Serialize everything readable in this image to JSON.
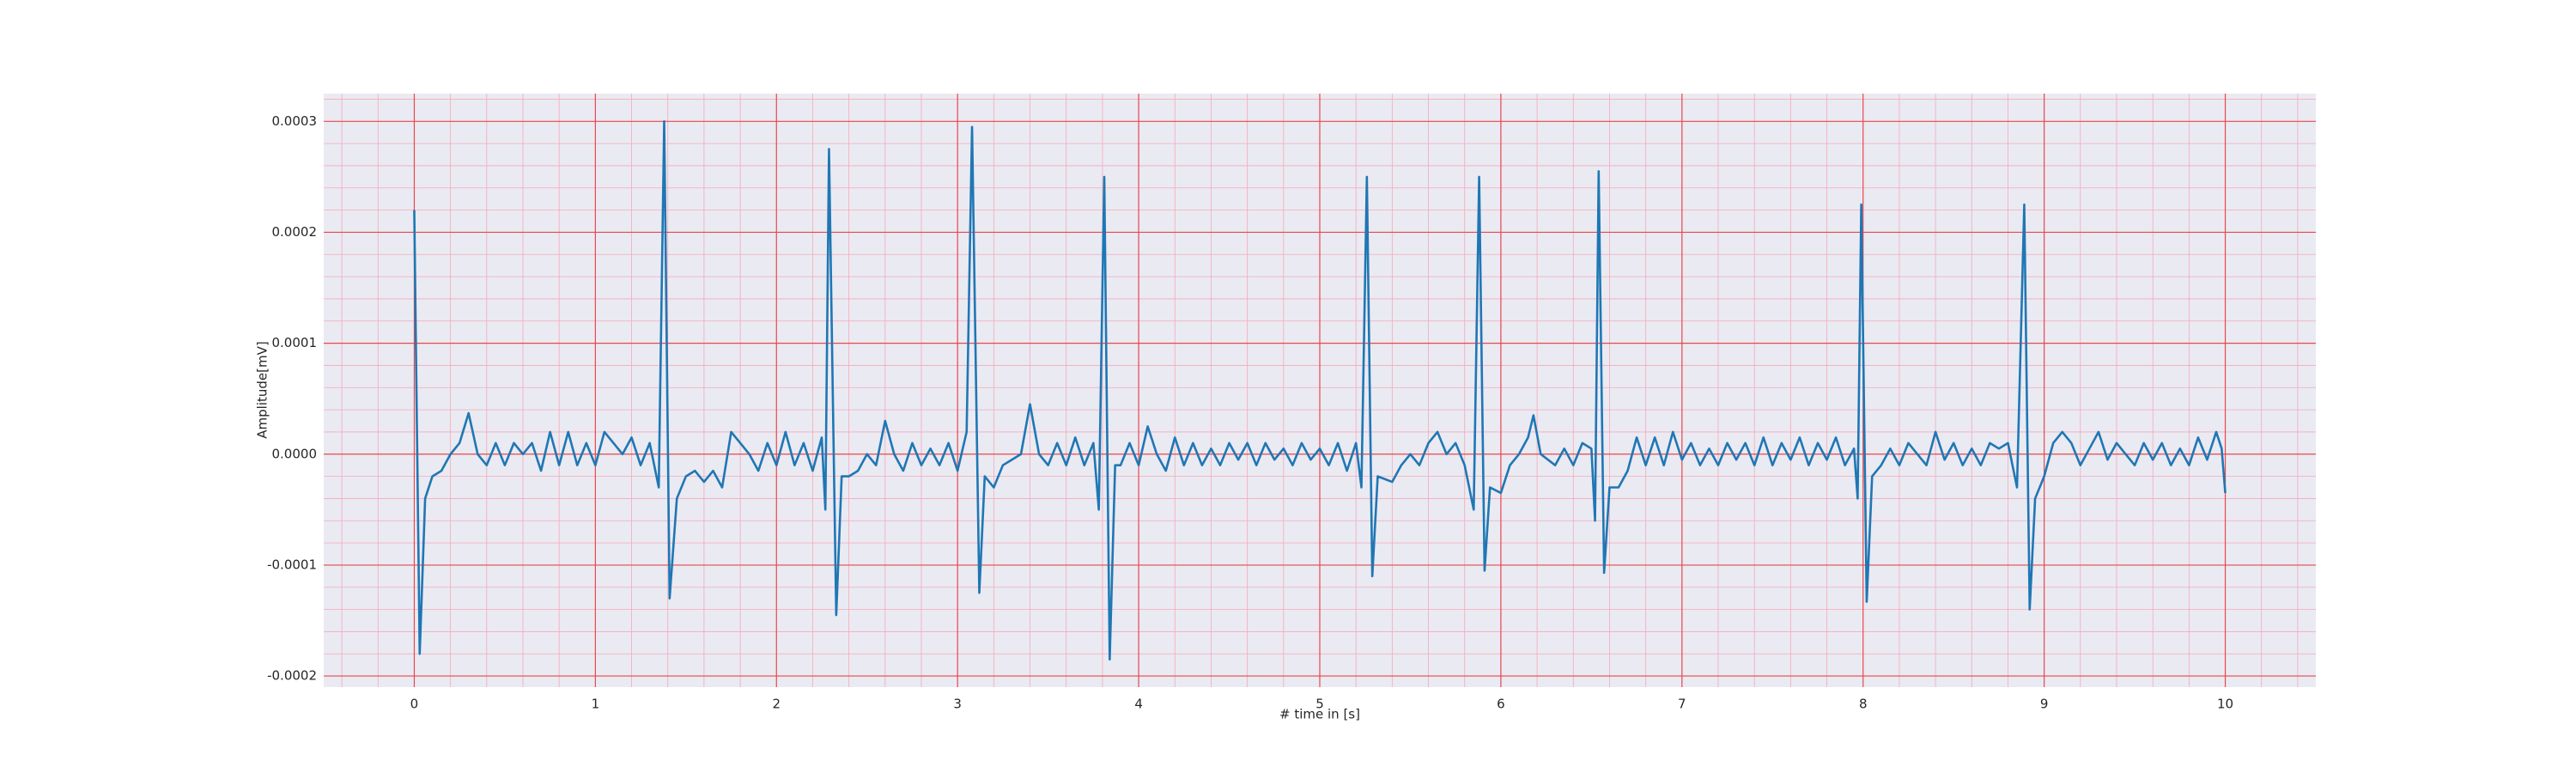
{
  "chart_data": {
    "type": "line",
    "xlabel": "# time in [s]",
    "ylabel": "Amplitude[mV]",
    "xlim": [
      -0.5,
      10.5
    ],
    "ylim": [
      -0.00021,
      0.000325
    ],
    "xticks": [
      0,
      1,
      2,
      3,
      4,
      5,
      6,
      7,
      8,
      9,
      10
    ],
    "yticks": [
      {
        "value": -0.0002,
        "label": "-0.0002"
      },
      {
        "value": -0.0001,
        "label": "-0.0001"
      },
      {
        "value": 0,
        "label": "0.0000"
      },
      {
        "value": 0.0001,
        "label": "0.0001"
      },
      {
        "value": 0.0002,
        "label": "0.0002"
      },
      {
        "value": 0.0003,
        "label": "0.0003"
      }
    ],
    "grid": true,
    "minor_grid": true,
    "grid_color": "#e8474c",
    "minor_grid_color": "#f4aab8",
    "background": "#eaeaf2",
    "series": [
      {
        "color": "#1f77b4",
        "x": [
          0,
          0.03,
          0.06,
          0.1,
          0.15,
          0.2,
          0.25,
          0.3,
          0.35,
          0.4,
          0.45,
          0.5,
          0.55,
          0.6,
          0.65,
          0.7,
          0.75,
          0.8,
          0.85,
          0.9,
          0.95,
          1.0,
          1.05,
          1.1,
          1.15,
          1.2,
          1.25,
          1.3,
          1.35,
          1.38,
          1.41,
          1.45,
          1.5,
          1.55,
          1.6,
          1.65,
          1.7,
          1.75,
          1.8,
          1.85,
          1.9,
          1.95,
          2.0,
          2.05,
          2.1,
          2.15,
          2.2,
          2.25,
          2.27,
          2.29,
          2.33,
          2.36,
          2.4,
          2.45,
          2.5,
          2.55,
          2.6,
          2.65,
          2.7,
          2.75,
          2.8,
          2.85,
          2.9,
          2.95,
          3.0,
          3.05,
          3.08,
          3.12,
          3.15,
          3.2,
          3.25,
          3.3,
          3.35,
          3.4,
          3.45,
          3.5,
          3.55,
          3.6,
          3.65,
          3.7,
          3.75,
          3.78,
          3.81,
          3.84,
          3.87,
          3.9,
          3.95,
          4.0,
          4.05,
          4.1,
          4.15,
          4.2,
          4.25,
          4.3,
          4.35,
          4.4,
          4.45,
          4.5,
          4.55,
          4.6,
          4.65,
          4.7,
          4.75,
          4.8,
          4.85,
          4.9,
          4.95,
          5.0,
          5.05,
          5.1,
          5.15,
          5.2,
          5.23,
          5.26,
          5.29,
          5.32,
          5.4,
          5.45,
          5.5,
          5.55,
          5.6,
          5.65,
          5.7,
          5.75,
          5.8,
          5.85,
          5.88,
          5.91,
          5.94,
          6.0,
          6.05,
          6.1,
          6.15,
          6.18,
          6.22,
          6.3,
          6.35,
          6.4,
          6.45,
          6.5,
          6.52,
          6.54,
          6.57,
          6.6,
          6.65,
          6.7,
          6.75,
          6.8,
          6.85,
          6.9,
          6.95,
          7.0,
          7.05,
          7.1,
          7.15,
          7.2,
          7.25,
          7.3,
          7.35,
          7.4,
          7.45,
          7.5,
          7.55,
          7.6,
          7.65,
          7.7,
          7.75,
          7.8,
          7.85,
          7.9,
          7.95,
          7.97,
          7.99,
          8.02,
          8.05,
          8.1,
          8.15,
          8.2,
          8.25,
          8.3,
          8.35,
          8.4,
          8.45,
          8.5,
          8.55,
          8.6,
          8.65,
          8.7,
          8.75,
          8.8,
          8.85,
          8.89,
          8.92,
          8.95,
          9.0,
          9.05,
          9.1,
          9.15,
          9.2,
          9.25,
          9.3,
          9.35,
          9.4,
          9.45,
          9.5,
          9.55,
          9.6,
          9.65,
          9.7,
          9.75,
          9.8,
          9.85,
          9.9,
          9.95,
          9.98,
          10.0
        ],
        "values": [
          0.00022,
          -0.00018,
          -4e-05,
          -2e-05,
          -1.5e-05,
          0,
          1e-05,
          3.7e-05,
          0,
          -1e-05,
          1e-05,
          -1e-05,
          1e-05,
          0,
          1e-05,
          -1.5e-05,
          2e-05,
          -1e-05,
          2e-05,
          -1e-05,
          1e-05,
          -1e-05,
          2e-05,
          1e-05,
          0,
          1.5e-05,
          -1e-05,
          1e-05,
          -3e-05,
          0.0003,
          -0.00013,
          -4e-05,
          -2e-05,
          -1.5e-05,
          -2.5e-05,
          -1.5e-05,
          -3e-05,
          2e-05,
          1e-05,
          0,
          -1.5e-05,
          1e-05,
          -1e-05,
          2e-05,
          -1e-05,
          1e-05,
          -1.5e-05,
          1.5e-05,
          -5e-05,
          0.000275,
          -0.000145,
          -2e-05,
          -2e-05,
          -1.5e-05,
          0,
          -1e-05,
          3e-05,
          0,
          -1.5e-05,
          1e-05,
          -1e-05,
          5e-06,
          -1e-05,
          1e-05,
          -1.5e-05,
          2e-05,
          0.000295,
          -0.000125,
          -2e-05,
          -3e-05,
          -1e-05,
          -5e-06,
          0,
          4.5e-05,
          0,
          -1e-05,
          1e-05,
          -1e-05,
          1.5e-05,
          -1e-05,
          1e-05,
          -5e-05,
          0.00025,
          -0.000185,
          -1e-05,
          -1e-05,
          1e-05,
          -1e-05,
          2.5e-05,
          0,
          -1.5e-05,
          1.5e-05,
          -1e-05,
          1e-05,
          -1e-05,
          5e-06,
          -1e-05,
          1e-05,
          -5e-06,
          1e-05,
          -1e-05,
          1e-05,
          -5e-06,
          5e-06,
          -1e-05,
          1e-05,
          -5e-06,
          5e-06,
          -1e-05,
          1e-05,
          -1.5e-05,
          1e-05,
          -3e-05,
          0.00025,
          -0.00011,
          -2e-05,
          -2.5e-05,
          -1e-05,
          0,
          -1e-05,
          1e-05,
          2e-05,
          0,
          1e-05,
          -1e-05,
          -5e-05,
          0.00025,
          -0.000105,
          -3e-05,
          -3.5e-05,
          -1e-05,
          0,
          1.5e-05,
          3.5e-05,
          0,
          -1e-05,
          5e-06,
          -1e-05,
          1e-05,
          5e-06,
          -6e-05,
          0.000255,
          -0.000107,
          -3e-05,
          -3e-05,
          -1.5e-05,
          1.5e-05,
          -1e-05,
          1.5e-05,
          -1e-05,
          2e-05,
          -5e-06,
          1e-05,
          -1e-05,
          5e-06,
          -1e-05,
          1e-05,
          -5e-06,
          1e-05,
          -1e-05,
          1.5e-05,
          -1e-05,
          1e-05,
          -5e-06,
          1.5e-05,
          -1e-05,
          1e-05,
          -5e-06,
          1.5e-05,
          -1e-05,
          5e-06,
          -4e-05,
          0.000225,
          -0.000133,
          -2e-05,
          -1e-05,
          5e-06,
          -1e-05,
          1e-05,
          0,
          -1e-05,
          2e-05,
          -5e-06,
          1e-05,
          -1e-05,
          5e-06,
          -1e-05,
          1e-05,
          5e-06,
          1e-05,
          -3e-05,
          0.000225,
          -0.00014,
          -4e-05,
          -2e-05,
          1e-05,
          2e-05,
          1e-05,
          -1e-05,
          5e-06,
          2e-05,
          -5e-06,
          1e-05,
          0,
          -1e-05,
          1e-05,
          -5e-06,
          1e-05,
          -1e-05,
          5e-06,
          -1e-05,
          1.5e-05,
          -5e-06,
          2e-05,
          5e-06,
          -3.5e-05
        ]
      }
    ]
  }
}
